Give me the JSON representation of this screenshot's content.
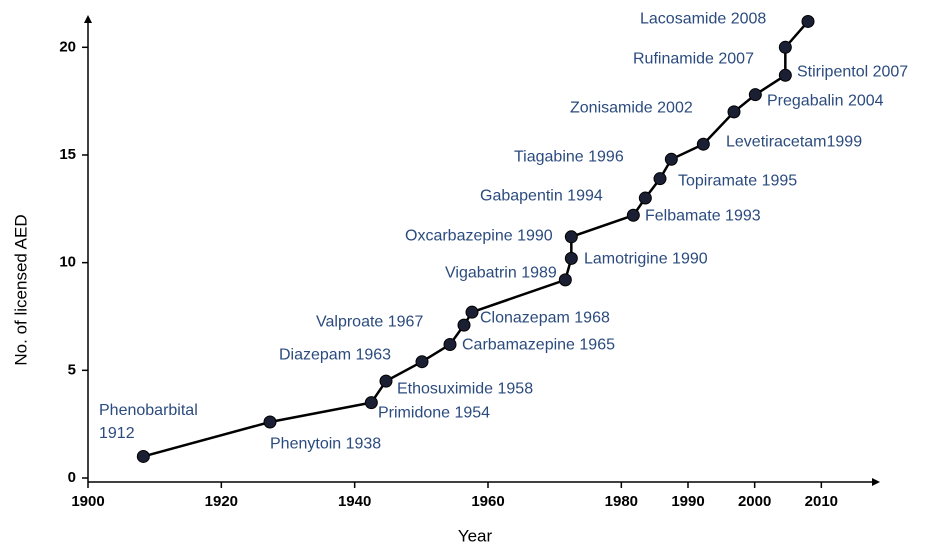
{
  "chart_data": {
    "type": "line",
    "x_label": "Year",
    "y_label": "No. of licensed AED",
    "x": [
      1908.3,
      1927.3,
      1942.5,
      1944.7,
      1950.1,
      1954.3,
      1956.4,
      1957.6,
      1971.6,
      1972.5,
      1972.5,
      1981.8,
      1983.6,
      1985.8,
      1987.5,
      1992.3,
      1996.9,
      2000.1,
      2004.6,
      2004.6,
      2008.0
    ],
    "values": [
      1.0,
      2.6,
      3.5,
      4.5,
      5.4,
      6.2,
      7.1,
      7.7,
      9.2,
      10.2,
      11.2,
      12.2,
      13.0,
      13.9,
      14.8,
      15.5,
      17.0,
      17.8,
      18.7,
      20.0,
      21.2
    ],
    "annotations": [
      "Phenobarbital 1912",
      "Phenytoin 1938",
      "Primidone 1954",
      "Ethosuximide 1958",
      "Diazepam 1963",
      "Carbamazepine 1965",
      "Valproate 1967",
      "Clonazepam 1968",
      "Vigabatrin 1989",
      "Lamotrigine 1990",
      "Oxcarbazepine 1990",
      "Felbamate 1993",
      "Gabapentin 1994",
      "Topiramate 1995",
      "Tiagabine 1996",
      "Levetiracetam1999",
      "Zonisamide 2002",
      "Pregabalin 2004",
      "Stiripentol 2007",
      "Rufinamide 2007",
      "Lacosamide 2008"
    ],
    "color": "#000000",
    "marker_color": "#1b1f33",
    "annotation_color": "#2b4b7e",
    "xlim": [
      1900,
      2018.8
    ],
    "ylim": [
      0,
      21.5
    ],
    "xticks": [
      1900,
      1920,
      1940,
      1960,
      1980,
      1990,
      2000,
      2010
    ],
    "yticks": [
      0,
      5,
      10,
      15,
      20
    ],
    "grid": false
  }
}
